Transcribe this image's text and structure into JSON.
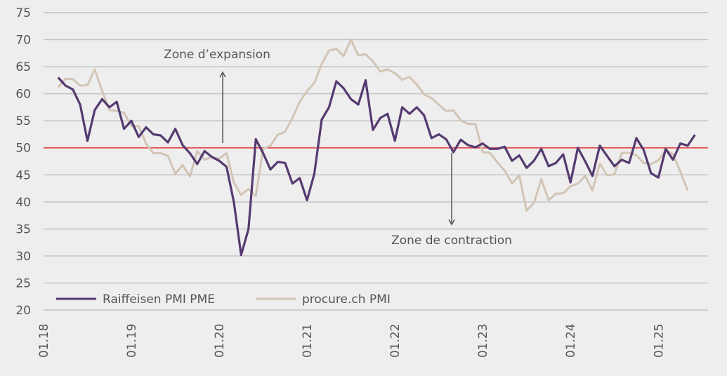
{
  "chart_data": {
    "type": "line",
    "title": "",
    "xlabel": "",
    "ylabel": "",
    "ylim": [
      20,
      75
    ],
    "yticks": [
      20,
      25,
      30,
      35,
      40,
      45,
      50,
      55,
      60,
      65,
      70,
      75
    ],
    "x_start": "01.18",
    "x_end_months": 90,
    "xtick_labels": [
      "01.18",
      "01.19",
      "01.20",
      "01.21",
      "01.22",
      "01.23",
      "01.24",
      "01.25"
    ],
    "grid": true,
    "reference_line": {
      "value": 50,
      "color": "#e2474b"
    },
    "annotations": [
      {
        "text": "Zone d’expansion",
        "direction": "up"
      },
      {
        "text": "Zone de contraction",
        "direction": "down"
      }
    ],
    "legend_position": "bottom-left",
    "series": [
      {
        "name": "Raiffeisen PMI PME",
        "color": "#553a70",
        "start_month_index": 2,
        "values": [
          63,
          61.5,
          60.8,
          58,
          51.3,
          57,
          59,
          57.5,
          58.5,
          53.5,
          55,
          52,
          53.8,
          52.5,
          52.3,
          51,
          53.5,
          50.5,
          49,
          47,
          49.4,
          48.3,
          47.6,
          46.5,
          40,
          30.2,
          35,
          51.6,
          49,
          46,
          47.4,
          47.2,
          43.4,
          44.4,
          40.3,
          45.2,
          55.2,
          57.5,
          62.3,
          61,
          59,
          58,
          62.5,
          53.3,
          55.5,
          56.3,
          51.3,
          57.5,
          56.3,
          57.5,
          56,
          51.8,
          52.5,
          51.6,
          49.2,
          51.5,
          50.5,
          50.1,
          50.8,
          49.8,
          49.8,
          50.2,
          47.6,
          48.6,
          46.3,
          47.6,
          49.8,
          46.6,
          47.2,
          48.8,
          43.6,
          50,
          47.5,
          44.8,
          50.4,
          48.5,
          46.6,
          47.8,
          47.2,
          51.8,
          49.6,
          45.3,
          44.5,
          49.8,
          47.8,
          50.8,
          50.4,
          52.4
        ]
      },
      {
        "name": "procure.ch PMI",
        "color": "#d2c5b6",
        "start_month_index": 2,
        "values": [
          61.2,
          62.8,
          62.7,
          61.5,
          61.6,
          64.5,
          60.5,
          57,
          56.8,
          56.5,
          54,
          54,
          50.8,
          49,
          49,
          48.5,
          45.2,
          46.8,
          44.7,
          49.4,
          47.8,
          48.3,
          48,
          49,
          43.6,
          41.3,
          42.4,
          41.1,
          49.8,
          50.4,
          52.4,
          53,
          55.5,
          58.5,
          60.5,
          62,
          65.5,
          68,
          68.3,
          67,
          70,
          67.1,
          67.3,
          66,
          64.1,
          64.5,
          63.8,
          62.6,
          63.1,
          61.7,
          59.9,
          59.2,
          58,
          56.8,
          56.9,
          55.1,
          54.4,
          54.4,
          49.2,
          49.1,
          47.3,
          45.8,
          43.4,
          44.9,
          38.4,
          39.8,
          44.2,
          40.3,
          41.5,
          41.6,
          42.9,
          43.4,
          44.8,
          42.1,
          47.1,
          44.9,
          45.1,
          49.1,
          49.1,
          48.6,
          47.2,
          47,
          47.7,
          49.6,
          48.8,
          45.6,
          42.1
        ]
      }
    ]
  }
}
